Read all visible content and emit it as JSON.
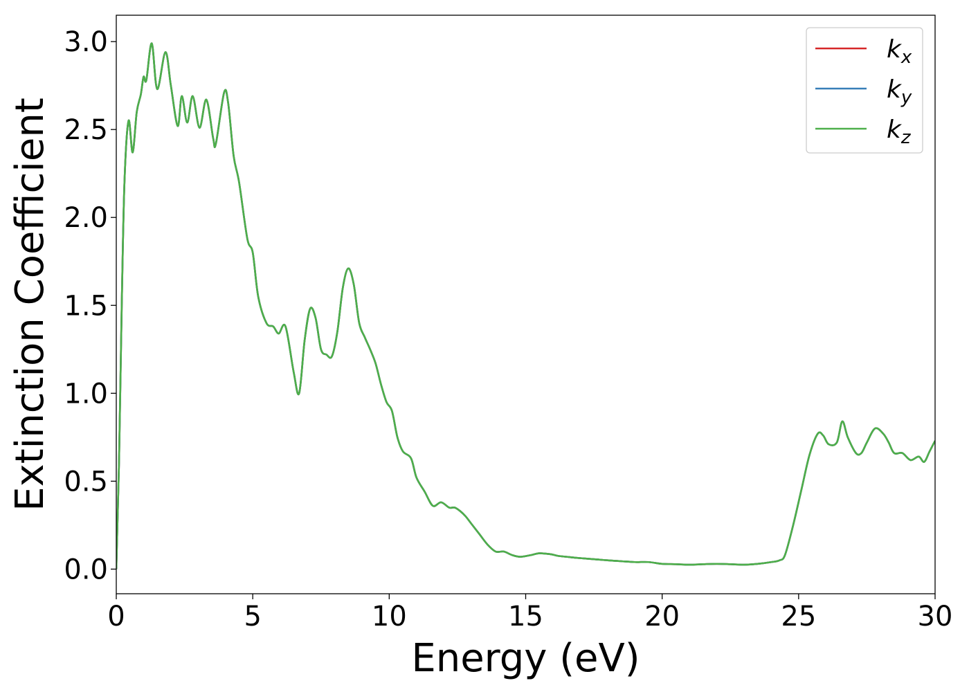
{
  "chart_data": {
    "type": "line",
    "xlabel": "Energy (eV)",
    "ylabel": "Extinction Coefficient",
    "xlim": [
      0,
      30
    ],
    "ylim": [
      -0.14,
      3.15
    ],
    "xticks": [
      0,
      5,
      10,
      15,
      20,
      25,
      30
    ],
    "xtick_labels": [
      "0",
      "5",
      "10",
      "15",
      "20",
      "25",
      "30"
    ],
    "yticks": [
      0.0,
      0.5,
      1.0,
      1.5,
      2.0,
      2.5,
      3.0
    ],
    "ytick_labels": [
      "0.0",
      "0.5",
      "1.0",
      "1.5",
      "2.0",
      "2.5",
      "3.0"
    ],
    "grid": false,
    "legend_position": "top-right",
    "x": [
      0.0,
      0.1,
      0.2,
      0.3,
      0.45,
      0.6,
      0.75,
      0.9,
      1.0,
      1.1,
      1.3,
      1.5,
      1.8,
      2.0,
      2.25,
      2.4,
      2.6,
      2.8,
      3.05,
      3.3,
      3.55,
      3.65,
      3.95,
      4.1,
      4.3,
      4.5,
      4.8,
      5.0,
      5.2,
      5.5,
      5.75,
      5.95,
      6.2,
      6.5,
      6.7,
      6.9,
      7.1,
      7.3,
      7.5,
      7.7,
      7.9,
      8.1,
      8.3,
      8.5,
      8.7,
      8.9,
      9.1,
      9.3,
      9.5,
      9.7,
      9.9,
      10.1,
      10.3,
      10.5,
      10.8,
      11.0,
      11.3,
      11.6,
      11.9,
      12.2,
      12.4,
      12.6,
      12.8,
      13.0,
      13.3,
      13.6,
      13.9,
      14.2,
      14.5,
      14.8,
      15.2,
      15.5,
      15.9,
      16.2,
      16.5,
      16.8,
      17.2,
      17.6,
      18.0,
      18.5,
      19.0,
      19.5,
      20.0,
      20.5,
      21.0,
      21.5,
      22.0,
      22.5,
      23.0,
      23.5,
      24.0,
      24.3,
      24.5,
      24.8,
      25.1,
      25.4,
      25.7,
      25.9,
      26.1,
      26.4,
      26.6,
      26.8,
      27.1,
      27.3,
      27.5,
      27.8,
      28.1,
      28.3,
      28.5,
      28.8,
      29.1,
      29.4,
      29.6,
      29.8,
      30.0
    ],
    "series": [
      {
        "name": "k_x",
        "label_main": "k",
        "label_sub": "x",
        "color": "#d62728",
        "values": [
          0.0,
          0.6,
          1.5,
          2.2,
          2.55,
          2.37,
          2.6,
          2.7,
          2.8,
          2.78,
          2.99,
          2.73,
          2.94,
          2.75,
          2.52,
          2.69,
          2.54,
          2.69,
          2.51,
          2.67,
          2.45,
          2.42,
          2.71,
          2.65,
          2.35,
          2.2,
          1.88,
          1.8,
          1.55,
          1.4,
          1.38,
          1.34,
          1.38,
          1.12,
          1.0,
          1.3,
          1.48,
          1.43,
          1.25,
          1.22,
          1.21,
          1.35,
          1.6,
          1.71,
          1.62,
          1.4,
          1.32,
          1.25,
          1.17,
          1.05,
          0.95,
          0.9,
          0.75,
          0.67,
          0.63,
          0.52,
          0.44,
          0.36,
          0.38,
          0.35,
          0.35,
          0.33,
          0.3,
          0.26,
          0.2,
          0.14,
          0.1,
          0.1,
          0.08,
          0.07,
          0.08,
          0.09,
          0.085,
          0.075,
          0.07,
          0.065,
          0.06,
          0.055,
          0.05,
          0.045,
          0.04,
          0.04,
          0.03,
          0.028,
          0.025,
          0.028,
          0.03,
          0.028,
          0.025,
          0.03,
          0.04,
          0.05,
          0.08,
          0.25,
          0.45,
          0.65,
          0.77,
          0.76,
          0.71,
          0.72,
          0.84,
          0.75,
          0.66,
          0.66,
          0.72,
          0.8,
          0.77,
          0.72,
          0.66,
          0.66,
          0.62,
          0.64,
          0.61,
          0.67,
          0.73
        ]
      },
      {
        "name": "k_y",
        "label_main": "k",
        "label_sub": "y",
        "color": "#377eb8",
        "values": [
          0.0,
          0.6,
          1.5,
          2.2,
          2.55,
          2.37,
          2.6,
          2.7,
          2.8,
          2.78,
          2.99,
          2.73,
          2.94,
          2.75,
          2.52,
          2.69,
          2.54,
          2.69,
          2.51,
          2.67,
          2.45,
          2.42,
          2.71,
          2.65,
          2.35,
          2.2,
          1.88,
          1.8,
          1.55,
          1.4,
          1.38,
          1.34,
          1.38,
          1.12,
          1.0,
          1.3,
          1.48,
          1.43,
          1.25,
          1.22,
          1.21,
          1.35,
          1.6,
          1.71,
          1.62,
          1.4,
          1.32,
          1.25,
          1.17,
          1.05,
          0.95,
          0.9,
          0.75,
          0.67,
          0.63,
          0.52,
          0.44,
          0.36,
          0.38,
          0.35,
          0.35,
          0.33,
          0.3,
          0.26,
          0.2,
          0.14,
          0.1,
          0.1,
          0.08,
          0.07,
          0.08,
          0.09,
          0.085,
          0.075,
          0.07,
          0.065,
          0.06,
          0.055,
          0.05,
          0.045,
          0.04,
          0.04,
          0.03,
          0.028,
          0.025,
          0.028,
          0.03,
          0.028,
          0.025,
          0.03,
          0.04,
          0.05,
          0.08,
          0.25,
          0.45,
          0.65,
          0.77,
          0.76,
          0.71,
          0.72,
          0.84,
          0.75,
          0.66,
          0.66,
          0.72,
          0.8,
          0.77,
          0.72,
          0.66,
          0.66,
          0.62,
          0.64,
          0.61,
          0.67,
          0.73
        ]
      },
      {
        "name": "k_z",
        "label_main": "k",
        "label_sub": "z",
        "color": "#4daf4a",
        "values": [
          0.0,
          0.6,
          1.5,
          2.2,
          2.55,
          2.37,
          2.6,
          2.7,
          2.8,
          2.78,
          2.99,
          2.73,
          2.94,
          2.75,
          2.52,
          2.69,
          2.54,
          2.69,
          2.51,
          2.67,
          2.45,
          2.42,
          2.71,
          2.65,
          2.35,
          2.2,
          1.88,
          1.8,
          1.55,
          1.4,
          1.38,
          1.34,
          1.38,
          1.12,
          1.0,
          1.3,
          1.48,
          1.43,
          1.25,
          1.22,
          1.21,
          1.35,
          1.6,
          1.71,
          1.62,
          1.4,
          1.32,
          1.25,
          1.17,
          1.05,
          0.95,
          0.9,
          0.75,
          0.67,
          0.63,
          0.52,
          0.44,
          0.36,
          0.38,
          0.35,
          0.35,
          0.33,
          0.3,
          0.26,
          0.2,
          0.14,
          0.1,
          0.1,
          0.08,
          0.07,
          0.08,
          0.09,
          0.085,
          0.075,
          0.07,
          0.065,
          0.06,
          0.055,
          0.05,
          0.045,
          0.04,
          0.04,
          0.03,
          0.028,
          0.025,
          0.028,
          0.03,
          0.028,
          0.025,
          0.03,
          0.04,
          0.05,
          0.08,
          0.25,
          0.45,
          0.65,
          0.77,
          0.76,
          0.71,
          0.72,
          0.84,
          0.75,
          0.66,
          0.66,
          0.72,
          0.8,
          0.77,
          0.72,
          0.66,
          0.66,
          0.62,
          0.64,
          0.61,
          0.67,
          0.73
        ]
      }
    ]
  }
}
